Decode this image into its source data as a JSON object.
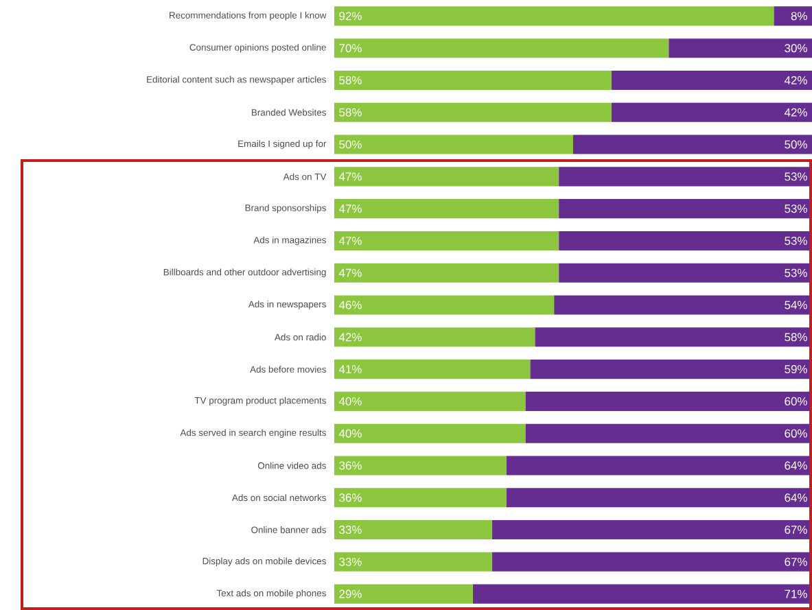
{
  "chart_data": {
    "type": "bar",
    "orientation": "horizontal",
    "stacked": true,
    "categories": [
      "Recommendations from people I know",
      "Consumer opinions posted online",
      "Editorial content such as newspaper articles",
      "Branded Websites",
      "Emails I signed up for",
      "Ads on TV",
      "Brand sponsorships",
      "Ads in magazines",
      "Billboards and other outdoor advertising",
      "Ads in newspapers",
      "Ads on radio",
      "Ads before movies",
      "TV program product placements",
      "Ads served in search engine results",
      "Online video ads",
      "Ads on social networks",
      "Online banner ads",
      "Display ads on mobile devices",
      "Text ads on mobile phones"
    ],
    "series": [
      {
        "color": "#8cc63f",
        "values": [
          92,
          70,
          58,
          58,
          50,
          47,
          47,
          47,
          47,
          46,
          42,
          41,
          40,
          40,
          36,
          36,
          33,
          33,
          29
        ],
        "value_labels": [
          "92%",
          "70%",
          "58%",
          "58%",
          "50%",
          "47%",
          "47%",
          "47%",
          "47%",
          "46%",
          "42%",
          "41%",
          "40%",
          "40%",
          "36%",
          "36%",
          "33%",
          "33%",
          "29%"
        ]
      },
      {
        "color": "#662d91",
        "values": [
          8,
          30,
          42,
          42,
          50,
          53,
          53,
          53,
          53,
          54,
          58,
          59,
          60,
          60,
          64,
          64,
          67,
          67,
          71
        ],
        "value_labels": [
          "8%",
          "30%",
          "42%",
          "42%",
          "50%",
          "53%",
          "53%",
          "53%",
          "53%",
          "54%",
          "58%",
          "59%",
          "60%",
          "60%",
          "64%",
          "64%",
          "67%",
          "67%",
          "71%"
        ]
      }
    ],
    "xlim": [
      0,
      100
    ],
    "tick_labels": "y"
  }
}
